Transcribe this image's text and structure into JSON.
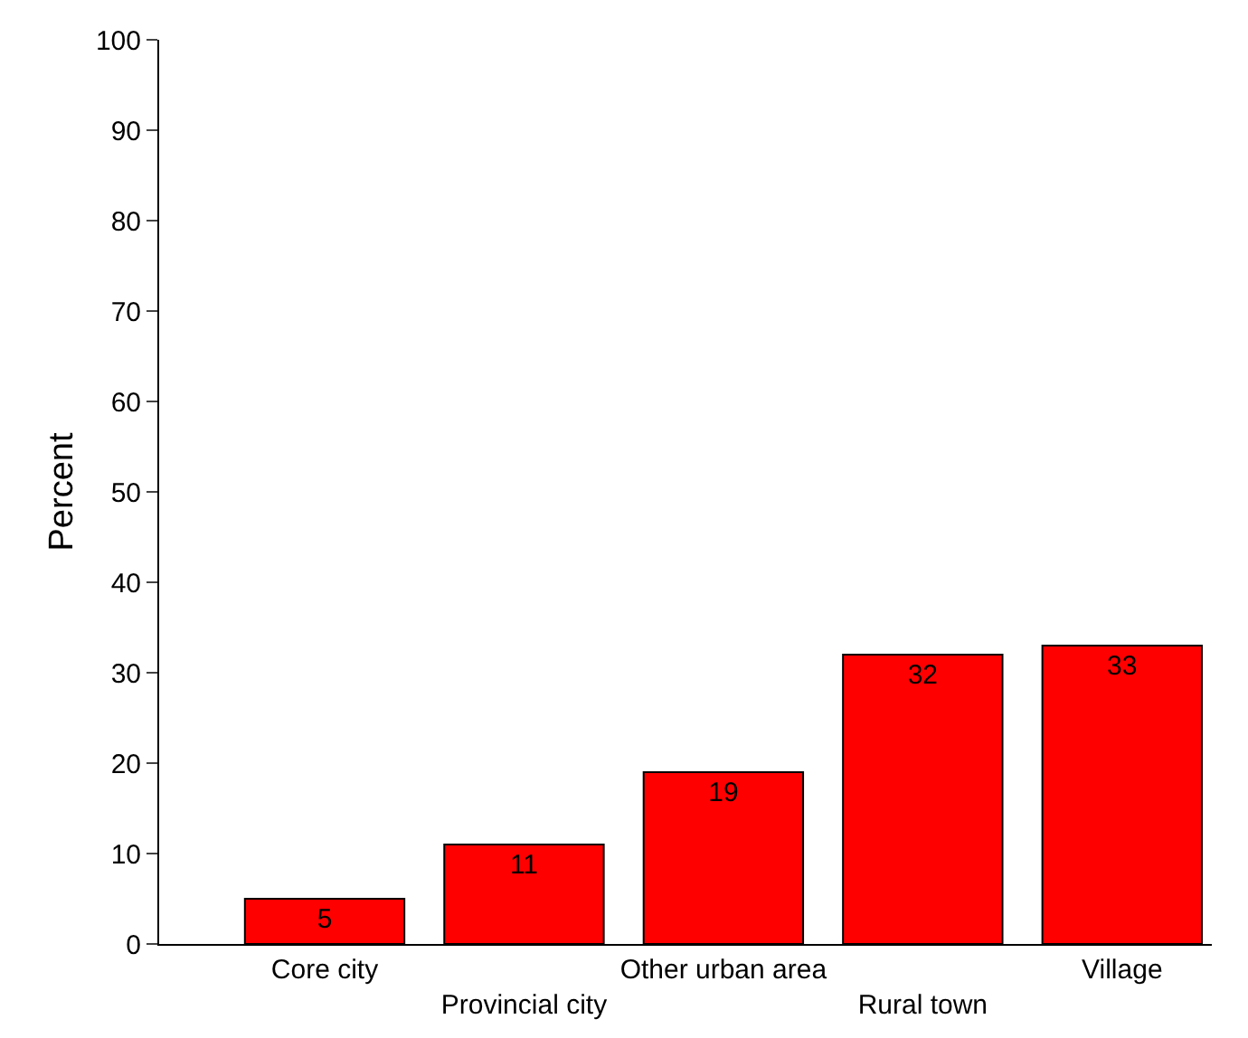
{
  "chart_data": {
    "type": "bar",
    "ylabel": "Percent",
    "categories": [
      "Core city",
      "Provincial city",
      "Other urban area",
      "Rural town",
      "Village"
    ],
    "values": [
      5,
      11,
      19,
      32,
      33
    ],
    "color": "#ff0000",
    "ylim": [
      0,
      100
    ],
    "yticks": [
      0,
      10,
      20,
      30,
      40,
      50,
      60,
      70,
      80,
      90,
      100
    ],
    "data_labels": true,
    "grid": false,
    "legend": false
  }
}
